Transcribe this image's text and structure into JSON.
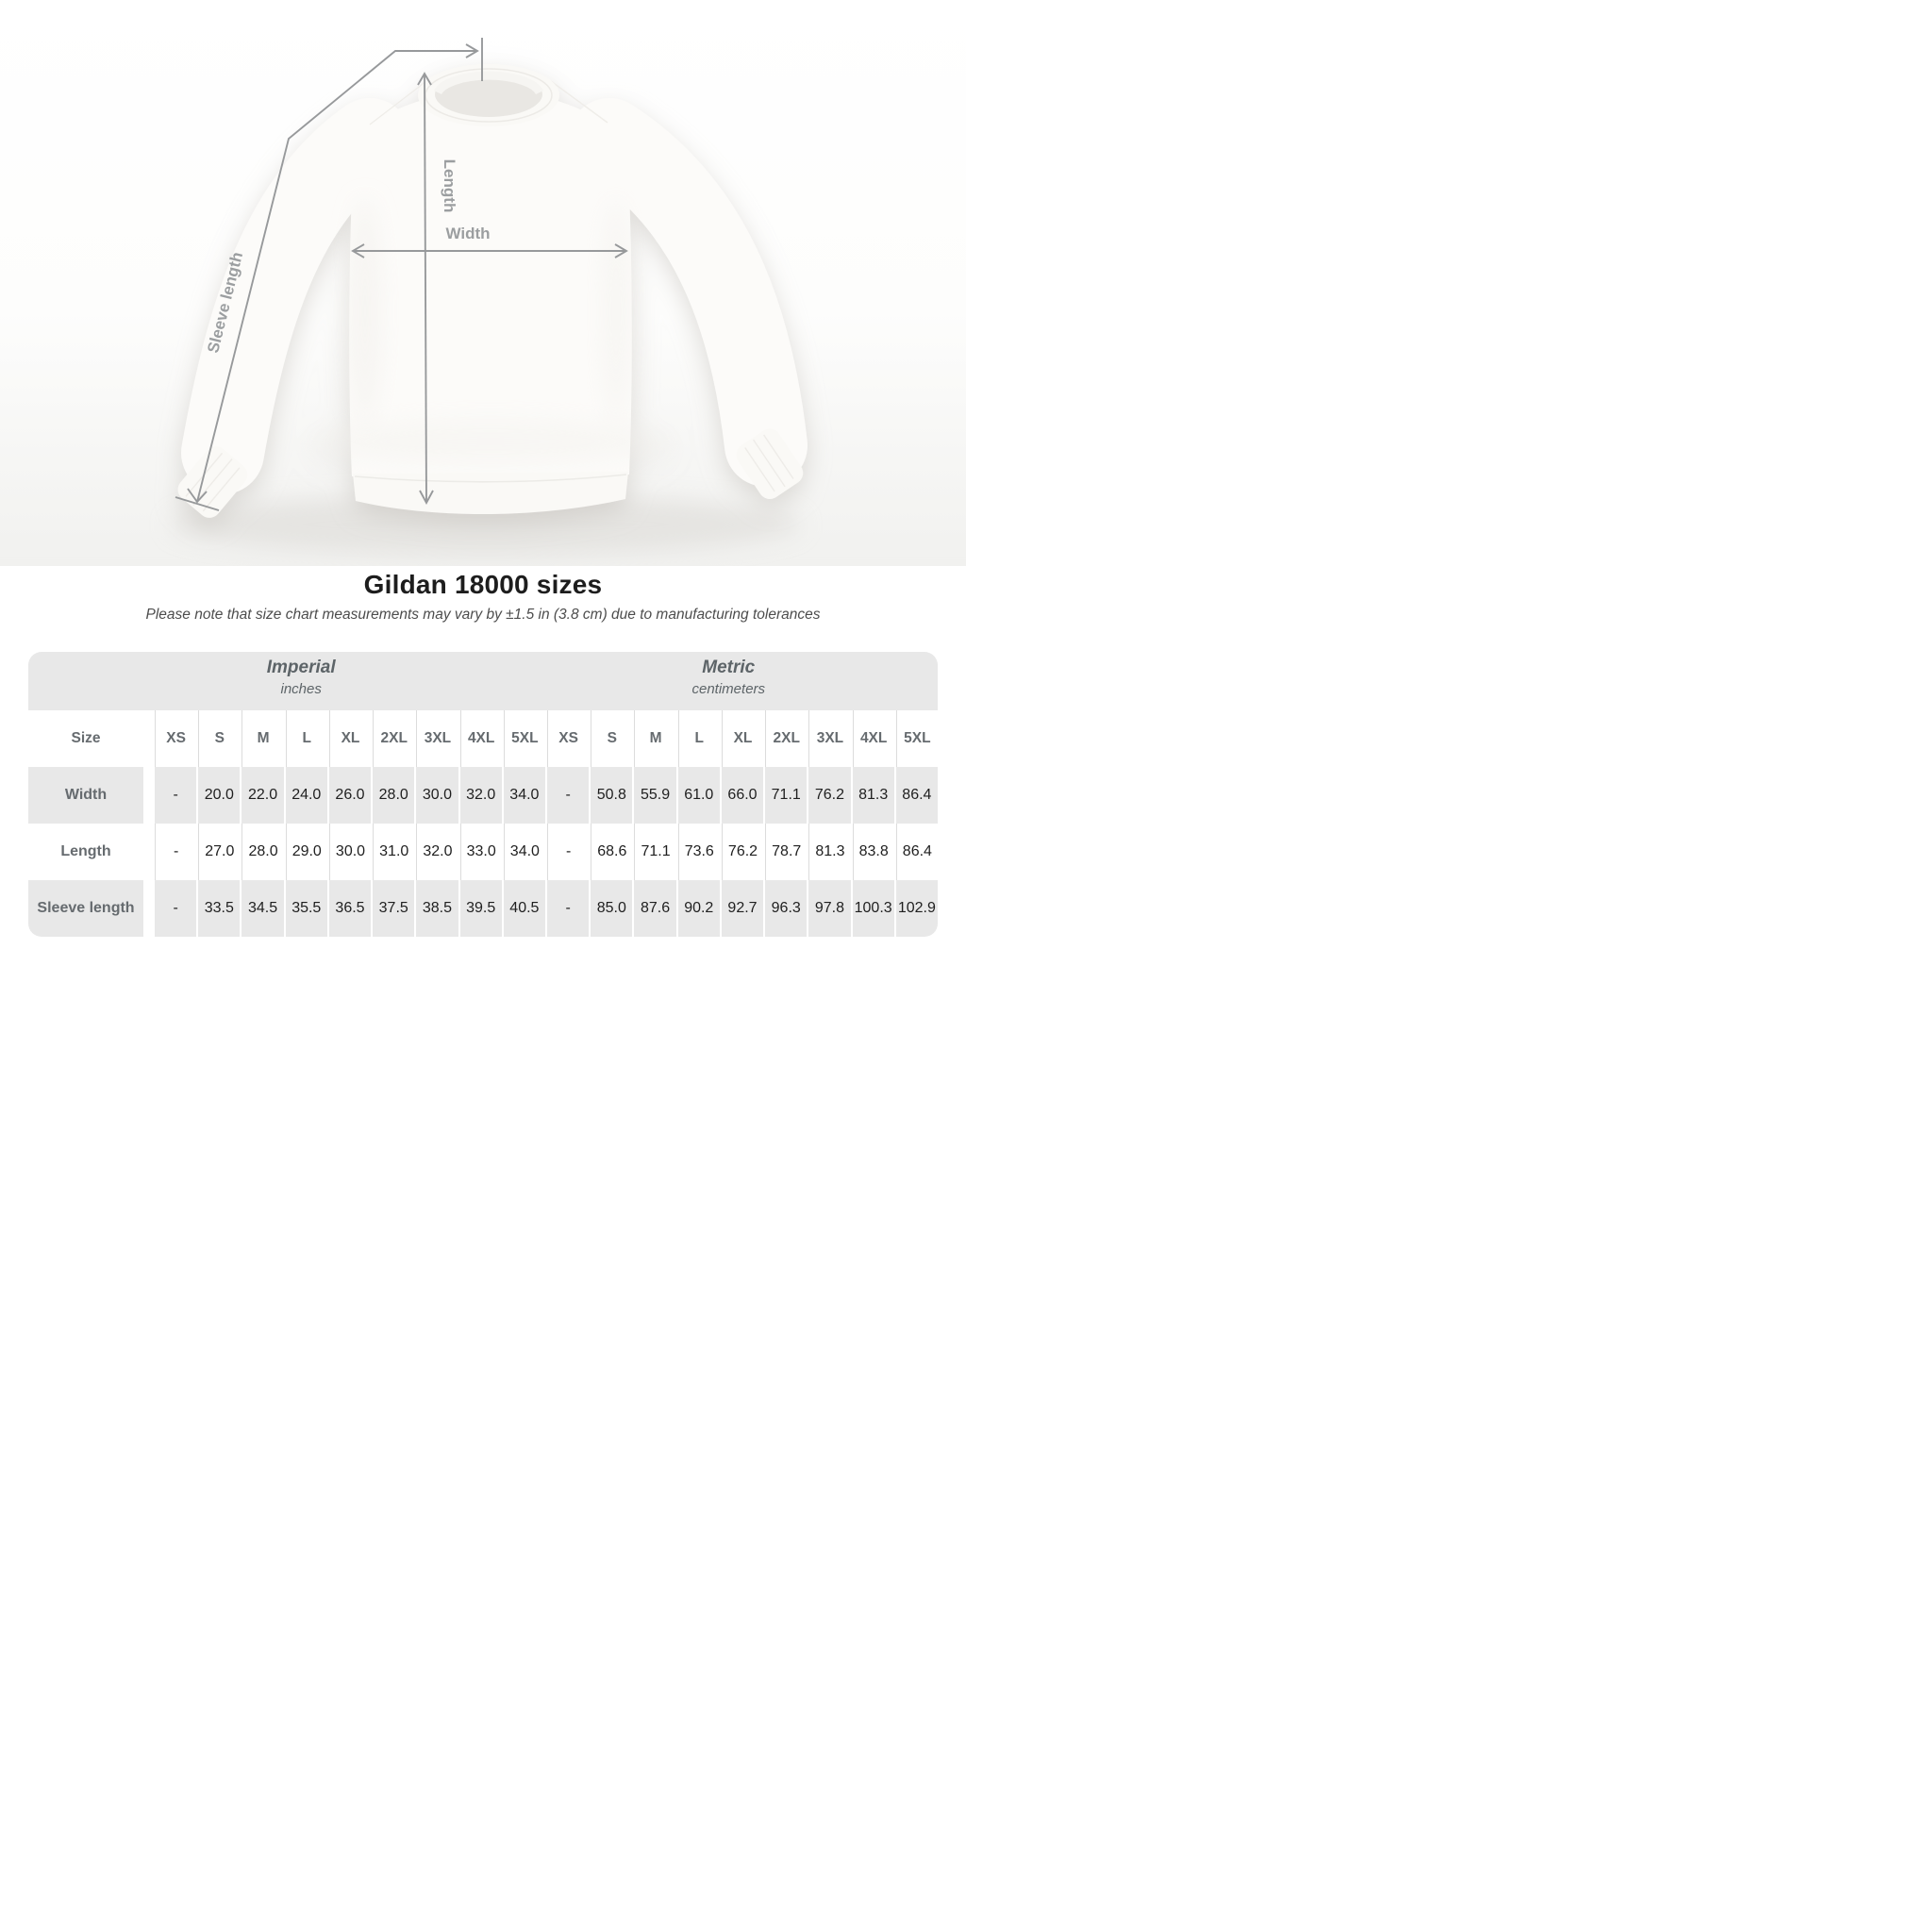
{
  "title": "Gildan 18000 sizes",
  "subtitle": "Please note that size chart measurements may vary by ±1.5 in (3.8 cm) due to manufacturing tolerances",
  "diagram": {
    "length_label": "Length",
    "width_label": "Width",
    "sleeve_label": "Sleeve length"
  },
  "table": {
    "size_header": "Size",
    "unit_groups": [
      {
        "name": "Imperial",
        "unit": "inches"
      },
      {
        "name": "Metric",
        "unit": "centimeters"
      }
    ],
    "sizes": [
      "XS",
      "S",
      "M",
      "L",
      "XL",
      "2XL",
      "3XL",
      "4XL",
      "5XL"
    ],
    "rows": [
      {
        "label": "Width",
        "imperial": [
          "-",
          "20.0",
          "22.0",
          "24.0",
          "26.0",
          "28.0",
          "30.0",
          "32.0",
          "34.0"
        ],
        "metric": [
          "-",
          "50.8",
          "55.9",
          "61.0",
          "66.0",
          "71.1",
          "76.2",
          "81.3",
          "86.4"
        ]
      },
      {
        "label": "Length",
        "imperial": [
          "-",
          "27.0",
          "28.0",
          "29.0",
          "30.0",
          "31.0",
          "32.0",
          "33.0",
          "34.0"
        ],
        "metric": [
          "-",
          "68.6",
          "71.1",
          "73.6",
          "76.2",
          "78.7",
          "81.3",
          "83.8",
          "86.4"
        ]
      },
      {
        "label": "Sleeve length",
        "imperial": [
          "-",
          "33.5",
          "34.5",
          "35.5",
          "36.5",
          "37.5",
          "38.5",
          "39.5",
          "40.5"
        ],
        "metric": [
          "-",
          "85.0",
          "87.6",
          "90.2",
          "92.7",
          "96.3",
          "97.8",
          "100.3",
          "102.9"
        ]
      }
    ]
  },
  "chart_data": {
    "type": "table",
    "title": "Gildan 18000 sizes",
    "note": "Measurements may vary by ±1.5 in (3.8 cm) due to manufacturing tolerances",
    "units": [
      "inches",
      "centimeters"
    ],
    "sizes": [
      "XS",
      "S",
      "M",
      "L",
      "XL",
      "2XL",
      "3XL",
      "4XL",
      "5XL"
    ],
    "rows": [
      {
        "measurement": "Width",
        "inches": [
          null,
          20.0,
          22.0,
          24.0,
          26.0,
          28.0,
          30.0,
          32.0,
          34.0
        ],
        "centimeters": [
          null,
          50.8,
          55.9,
          61.0,
          66.0,
          71.1,
          76.2,
          81.3,
          86.4
        ]
      },
      {
        "measurement": "Length",
        "inches": [
          null,
          27.0,
          28.0,
          29.0,
          30.0,
          31.0,
          32.0,
          33.0,
          34.0
        ],
        "centimeters": [
          null,
          68.6,
          71.1,
          73.6,
          76.2,
          78.7,
          81.3,
          83.8,
          86.4
        ]
      },
      {
        "measurement": "Sleeve length",
        "inches": [
          null,
          33.5,
          34.5,
          35.5,
          36.5,
          37.5,
          38.5,
          39.5,
          40.5
        ],
        "centimeters": [
          null,
          85.0,
          87.6,
          90.2,
          92.7,
          96.3,
          97.8,
          100.3,
          102.9
        ]
      }
    ]
  },
  "colors": {
    "table_band": "#e8e8e8",
    "label_text": "#666b6f",
    "value_text": "#1f1f1f",
    "measure_line": "#97999b",
    "title_text": "#1d1d1d"
  }
}
